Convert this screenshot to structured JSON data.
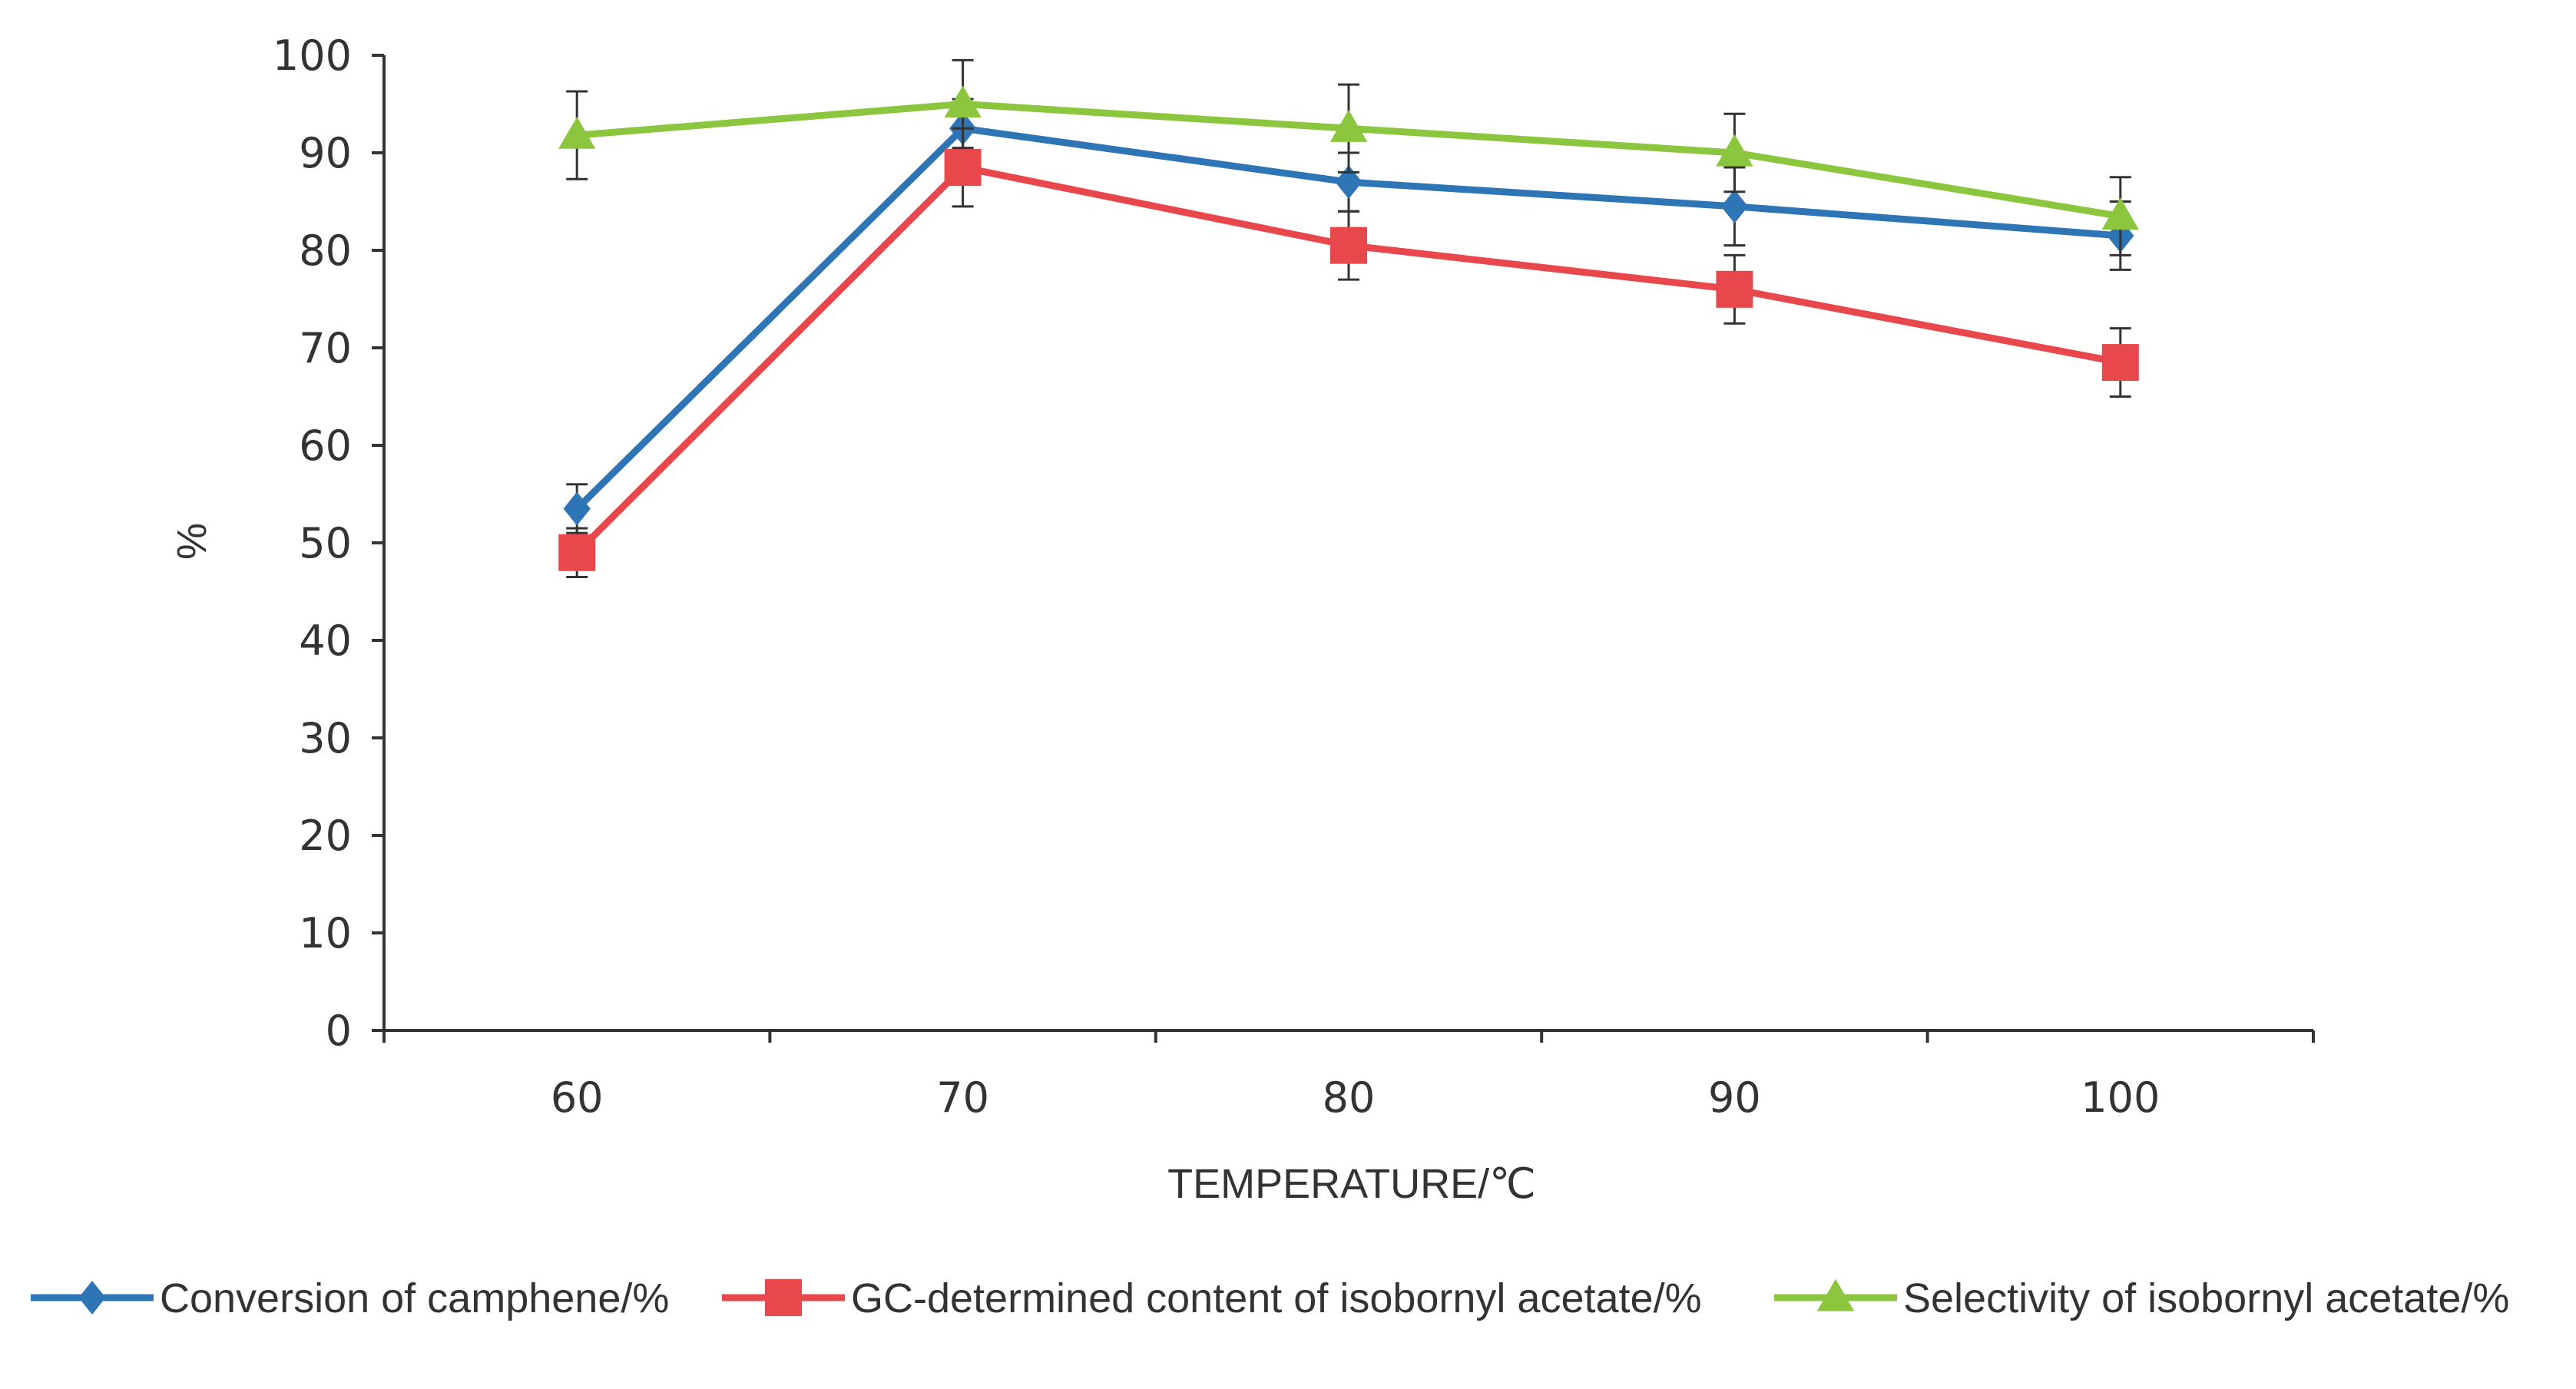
{
  "chart_data": {
    "type": "line",
    "title": "",
    "xlabel": "TEMPERATURE/℃",
    "ylabel": "%",
    "categories": [
      "60",
      "70",
      "80",
      "90",
      "100"
    ],
    "ylim": [
      0,
      100
    ],
    "yticks": [
      "0",
      "10",
      "20",
      "30",
      "40",
      "50",
      "60",
      "70",
      "80",
      "90",
      "100"
    ],
    "grid": false,
    "legend_position": "bottom",
    "series": [
      {
        "name": "Conversion of camphene/%",
        "color": "#2e75b6",
        "marker": "diamond",
        "values": [
          53.5,
          92.5,
          87.0,
          84.5,
          81.5
        ],
        "errors": [
          2.5,
          3.0,
          3.0,
          4.0,
          3.5
        ]
      },
      {
        "name": "GC-determined content of isobornyl acetate/%",
        "color": "#e8474c",
        "marker": "square",
        "values": [
          49.0,
          88.5,
          80.5,
          76.0,
          68.5
        ],
        "errors": [
          2.5,
          4.0,
          3.5,
          3.5,
          3.5
        ]
      },
      {
        "name": "Selectivity of isobornyl acetate/%",
        "color": "#8cc63f",
        "marker": "triangle",
        "values": [
          91.8,
          95.0,
          92.5,
          90.0,
          83.5
        ],
        "errors": [
          4.5,
          4.5,
          4.5,
          4.0,
          4.0
        ]
      }
    ]
  }
}
